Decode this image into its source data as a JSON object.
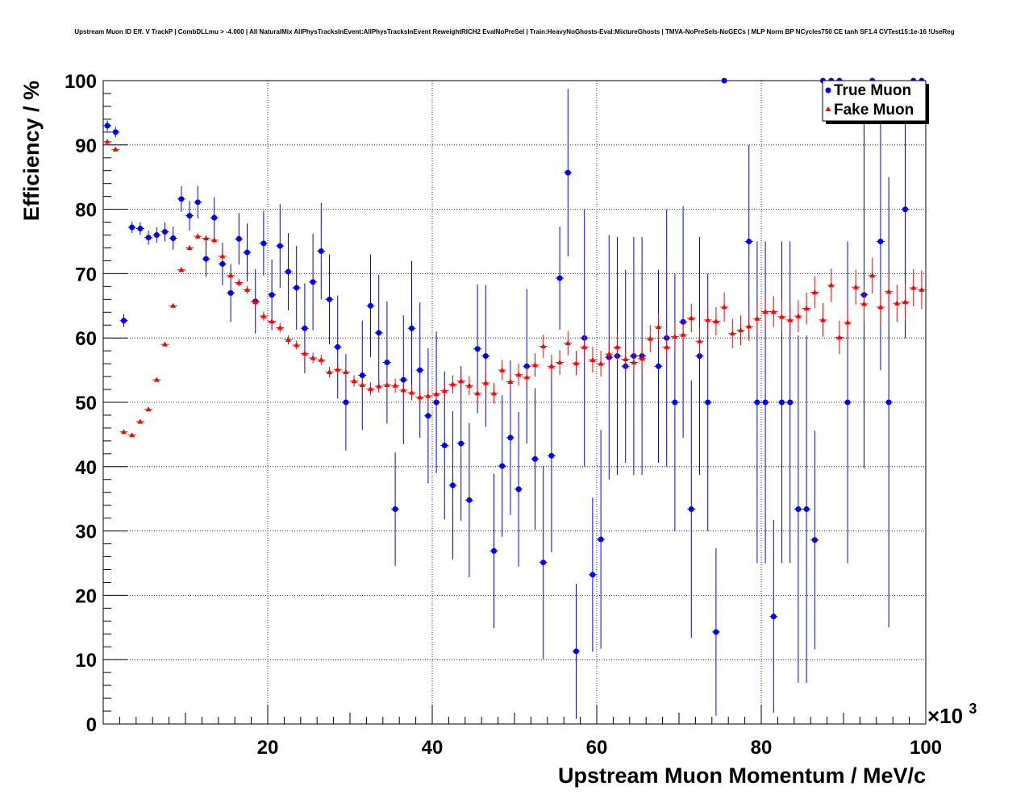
{
  "chart_data": {
    "type": "scatter",
    "title": "Upstream Muon ID Eff. V TrackP | CombDLLmu > -4.000 | All NaturalMix AllPhysTracksInEvent:AllPhysTracksInEvent ReweightRICH2 EvalNoPreSel | Train:HeavyNoGhosts-Eval:MixtureGhosts | TMVA-NoPreSels-NoGECs | MLP Norm BP NCycles750 CE tanh SF1.4 CVTest15:1e-16 !UseReg",
    "xlabel": "Upstream Muon Momentum / MeV/c",
    "ylabel": "Efficiency / %",
    "x_exponent_label": "×10",
    "x_exponent_power": "3",
    "x_tick_labels": [
      "20",
      "40",
      "60",
      "80",
      "100"
    ],
    "y_tick_labels": [
      "0",
      "10",
      "20",
      "30",
      "40",
      "50",
      "60",
      "70",
      "80",
      "90",
      "100"
    ],
    "xlim": [
      0,
      100000
    ],
    "ylim": [
      0,
      100
    ],
    "grid": true,
    "legend_position": "top-right",
    "series": [
      {
        "name": "True Muon",
        "color": "#0000ff",
        "marker": "circle",
        "points": [
          [
            500,
            93.0,
            0.8
          ],
          [
            1500,
            92.0,
            0.8
          ],
          [
            2500,
            62.7,
            1.0
          ],
          [
            3500,
            77.2,
            0.9
          ],
          [
            4500,
            77.0,
            1.0
          ],
          [
            5500,
            75.6,
            1.1
          ],
          [
            6500,
            76.0,
            1.2
          ],
          [
            7500,
            76.5,
            1.5
          ],
          [
            8500,
            75.5,
            1.8
          ],
          [
            9500,
            81.6,
            2.0
          ],
          [
            10500,
            79.0,
            2.3
          ],
          [
            11500,
            81.1,
            2.5
          ],
          [
            12500,
            72.3,
            2.8
          ],
          [
            13500,
            78.7,
            3.2
          ],
          [
            14500,
            71.5,
            3.3
          ],
          [
            15500,
            67.0,
            4.5
          ],
          [
            16500,
            75.4,
            4.0
          ],
          [
            17500,
            73.3,
            4.5
          ],
          [
            18500,
            65.7,
            5.0
          ],
          [
            19500,
            74.7,
            5.0
          ],
          [
            20500,
            66.7,
            5.5
          ],
          [
            21500,
            74.3,
            6.5
          ],
          [
            22500,
            70.3,
            6.0
          ],
          [
            23500,
            67.8,
            6.5
          ],
          [
            24500,
            61.5,
            7.0
          ],
          [
            25500,
            68.7,
            7.5
          ],
          [
            26500,
            73.5,
            7.5
          ],
          [
            27500,
            66.0,
            7.0
          ],
          [
            28500,
            58.6,
            8.0
          ],
          [
            29500,
            50.0,
            7.5
          ],
          [
            31500,
            54.2,
            8.5
          ],
          [
            32500,
            65.0,
            8.0
          ],
          [
            33500,
            60.8,
            9.0
          ],
          [
            34500,
            56.2,
            9.5
          ],
          [
            35500,
            33.4,
            8.8
          ],
          [
            36500,
            53.5,
            10.0
          ],
          [
            37500,
            61.5,
            10.5
          ],
          [
            38500,
            55.0,
            10.5
          ],
          [
            39500,
            47.9,
            10.5
          ],
          [
            40500,
            50.0,
            11.0
          ],
          [
            41500,
            43.3,
            11.5
          ],
          [
            42500,
            37.1,
            11.5
          ],
          [
            43500,
            43.6,
            12.0
          ],
          [
            44500,
            34.8,
            12.0
          ],
          [
            45500,
            58.3,
            10.0
          ],
          [
            46500,
            57.2,
            11.0
          ],
          [
            47500,
            26.9,
            12.0
          ],
          [
            48500,
            40.1,
            11.0
          ],
          [
            49500,
            44.5,
            12.0
          ],
          [
            50500,
            36.5,
            12.0
          ],
          [
            51500,
            55.6,
            12.0
          ],
          [
            52500,
            41.2,
            11.0
          ],
          [
            53500,
            25.1,
            15.0
          ],
          [
            54500,
            41.7,
            15.0
          ],
          [
            55500,
            69.3,
            8.0
          ],
          [
            56500,
            85.7,
            13.0
          ],
          [
            57500,
            11.3,
            10.5
          ],
          [
            58500,
            60.0,
            20.0
          ],
          [
            59500,
            23.2,
            12.0
          ],
          [
            60500,
            28.7,
            17.0
          ],
          [
            61500,
            57.0,
            19.0
          ],
          [
            62500,
            57.2,
            18.5
          ],
          [
            63500,
            55.6,
            15.0
          ],
          [
            64500,
            57.2,
            18.5
          ],
          [
            65500,
            57.2,
            18.5
          ],
          [
            67500,
            55.6,
            15.0
          ],
          [
            68500,
            60.0,
            20.0
          ],
          [
            69500,
            50.0,
            20.0
          ],
          [
            70500,
            62.5,
            18.0
          ],
          [
            71500,
            33.4,
            20.0
          ],
          [
            72500,
            57.2,
            18.5
          ],
          [
            73500,
            50.0,
            20.0
          ],
          [
            74500,
            14.3,
            13.0
          ],
          [
            75500,
            100.0,
            0.0
          ],
          [
            78500,
            75.0,
            15.0
          ],
          [
            79500,
            50.0,
            25.0
          ],
          [
            80500,
            50.0,
            25.0
          ],
          [
            81500,
            16.7,
            15.0
          ],
          [
            82500,
            50.0,
            25.0
          ],
          [
            83500,
            50.0,
            25.0
          ],
          [
            84500,
            33.4,
            27.0
          ],
          [
            85500,
            33.4,
            27.0
          ],
          [
            86500,
            28.6,
            17.0
          ],
          [
            87500,
            100.0,
            0.0
          ],
          [
            88500,
            100.0,
            0.0
          ],
          [
            89500,
            100.0,
            0.0
          ],
          [
            90500,
            50.0,
            25.0
          ],
          [
            92500,
            66.7,
            27.0
          ],
          [
            93500,
            100.0,
            0.0
          ],
          [
            94500,
            75.0,
            20.0
          ],
          [
            95500,
            50.0,
            35.0
          ],
          [
            97500,
            80.0,
            20.0
          ],
          [
            98500,
            100.0,
            0.0
          ],
          [
            99500,
            100.0,
            0.0
          ]
        ]
      },
      {
        "name": "Fake Muon",
        "color": "#ff0000",
        "marker": "triangle",
        "points": [
          [
            500,
            90.5,
            0.3
          ],
          [
            1500,
            89.3,
            0.3
          ],
          [
            2500,
            45.4,
            0.3
          ],
          [
            3500,
            44.9,
            0.3
          ],
          [
            4500,
            47.0,
            0.3
          ],
          [
            5500,
            48.9,
            0.3
          ],
          [
            6500,
            53.5,
            0.3
          ],
          [
            7500,
            59.0,
            0.3
          ],
          [
            8500,
            65.0,
            0.3
          ],
          [
            9500,
            70.6,
            0.4
          ],
          [
            10500,
            74.0,
            0.4
          ],
          [
            11500,
            75.8,
            0.4
          ],
          [
            12500,
            75.5,
            0.5
          ],
          [
            13500,
            75.2,
            0.5
          ],
          [
            14500,
            72.7,
            0.5
          ],
          [
            15500,
            69.7,
            0.6
          ],
          [
            16500,
            68.6,
            0.6
          ],
          [
            17500,
            67.5,
            0.6
          ],
          [
            18500,
            65.6,
            0.6
          ],
          [
            19500,
            63.4,
            0.7
          ],
          [
            20500,
            62.6,
            0.7
          ],
          [
            21500,
            61.6,
            0.7
          ],
          [
            22500,
            59.7,
            0.7
          ],
          [
            23500,
            58.9,
            0.7
          ],
          [
            24500,
            57.6,
            0.8
          ],
          [
            25500,
            56.9,
            0.8
          ],
          [
            26500,
            56.6,
            0.8
          ],
          [
            27500,
            54.7,
            0.8
          ],
          [
            28500,
            55.1,
            0.9
          ],
          [
            29500,
            54.7,
            0.9
          ],
          [
            30500,
            53.3,
            0.9
          ],
          [
            31500,
            52.7,
            1.0
          ],
          [
            32500,
            52.1,
            1.0
          ],
          [
            33500,
            52.5,
            1.0
          ],
          [
            34500,
            52.7,
            1.1
          ],
          [
            35500,
            52.6,
            1.1
          ],
          [
            36500,
            51.9,
            1.2
          ],
          [
            37500,
            51.5,
            1.2
          ],
          [
            38500,
            50.8,
            1.2
          ],
          [
            39500,
            51.0,
            1.3
          ],
          [
            40500,
            51.3,
            1.3
          ],
          [
            41500,
            51.8,
            1.4
          ],
          [
            42500,
            52.8,
            1.4
          ],
          [
            43500,
            53.3,
            1.5
          ],
          [
            44500,
            52.6,
            1.5
          ],
          [
            45500,
            51.4,
            1.5
          ],
          [
            46500,
            53.0,
            1.6
          ],
          [
            47500,
            51.4,
            1.6
          ],
          [
            48500,
            55.0,
            1.6
          ],
          [
            49500,
            53.2,
            1.7
          ],
          [
            50500,
            54.3,
            1.7
          ],
          [
            51500,
            53.9,
            1.7
          ],
          [
            52500,
            55.8,
            1.8
          ],
          [
            53500,
            58.7,
            1.8
          ],
          [
            54500,
            55.6,
            1.8
          ],
          [
            55500,
            56.2,
            1.9
          ],
          [
            56500,
            59.2,
            1.9
          ],
          [
            57500,
            56.1,
            1.9
          ],
          [
            58500,
            58.6,
            2.0
          ],
          [
            59500,
            56.6,
            2.0
          ],
          [
            60500,
            56.0,
            2.0
          ],
          [
            61500,
            57.5,
            2.0
          ],
          [
            62500,
            58.6,
            2.0
          ],
          [
            63500,
            56.7,
            2.0
          ],
          [
            64500,
            56.2,
            2.0
          ],
          [
            65500,
            56.8,
            2.0
          ],
          [
            66500,
            59.9,
            2.1
          ],
          [
            67500,
            61.7,
            2.1
          ],
          [
            68500,
            58.6,
            2.1
          ],
          [
            69500,
            60.2,
            2.1
          ],
          [
            70500,
            60.5,
            2.2
          ],
          [
            71500,
            63.1,
            2.2
          ],
          [
            72500,
            59.5,
            2.2
          ],
          [
            73500,
            62.8,
            2.2
          ],
          [
            74500,
            62.6,
            2.2
          ],
          [
            75500,
            64.8,
            2.3
          ],
          [
            76500,
            60.7,
            2.3
          ],
          [
            77500,
            61.2,
            2.3
          ],
          [
            78500,
            61.8,
            2.3
          ],
          [
            79500,
            63.0,
            2.4
          ],
          [
            80500,
            64.1,
            2.4
          ],
          [
            81500,
            64.1,
            2.4
          ],
          [
            82500,
            63.3,
            2.4
          ],
          [
            83500,
            62.8,
            2.5
          ],
          [
            84500,
            63.4,
            2.5
          ],
          [
            85500,
            64.6,
            2.5
          ],
          [
            86500,
            67.1,
            2.5
          ],
          [
            87500,
            62.8,
            2.6
          ],
          [
            88500,
            68.2,
            2.6
          ],
          [
            89500,
            60.1,
            2.6
          ],
          [
            90500,
            62.4,
            2.7
          ],
          [
            91500,
            67.9,
            2.7
          ],
          [
            92500,
            65.3,
            2.7
          ],
          [
            93500,
            69.7,
            2.8
          ],
          [
            94500,
            64.8,
            2.8
          ],
          [
            95500,
            67.2,
            2.8
          ],
          [
            96500,
            65.4,
            2.9
          ],
          [
            97500,
            65.6,
            2.9
          ],
          [
            98500,
            67.8,
            2.9
          ],
          [
            99500,
            67.5,
            3.0
          ]
        ]
      }
    ]
  }
}
